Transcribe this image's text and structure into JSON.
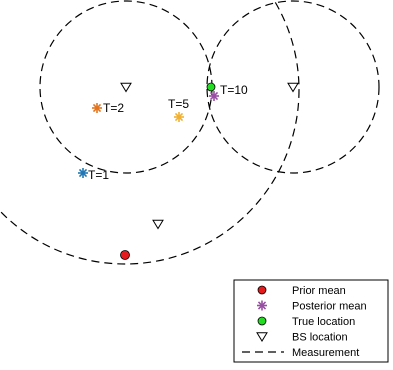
{
  "chart_data": {
    "type": "scatter",
    "title": "",
    "xlabel": "",
    "ylabel": "",
    "xlim": [
      0,
      393
    ],
    "ylim": [
      0,
      370
    ],
    "axes_visible": false,
    "grid": false,
    "legend_position": "bottom-right",
    "colors": {
      "prior": "#e41a1c",
      "posterior": "#984ea3",
      "true": "#22dd22",
      "bs": "#000000",
      "T1": "#1f77b4",
      "T2": "#e3731c",
      "T5": "#f0b030",
      "T10": "#984ea3"
    },
    "measurements": [
      {
        "center": [
          125,
          280
        ],
        "radius": 174
      },
      {
        "center": [
          126,
          283
        ],
        "radius": 86
      },
      {
        "center": [
          293,
          283
        ],
        "radius": 86
      }
    ],
    "bs_locations": [
      {
        "x": 126,
        "y": 283
      },
      {
        "x": 293,
        "y": 283
      },
      {
        "x": 158,
        "y": 146
      }
    ],
    "prior_mean": {
      "x": 125,
      "y": 115
    },
    "true_location": {
      "x": 211,
      "y": 283
    },
    "posterior_estimates": [
      {
        "label": "T=1",
        "x": 83,
        "y": 197,
        "color_key": "T1"
      },
      {
        "label": "T=2",
        "x": 97,
        "y": 262,
        "color_key": "T2"
      },
      {
        "label": "T=5",
        "x": 179,
        "y": 253,
        "color_key": "T5"
      },
      {
        "label": "T=10",
        "x": 214,
        "y": 274,
        "color_key": "T10"
      }
    ],
    "legend": [
      {
        "label": "Prior mean",
        "marker": "circle",
        "color_key": "prior"
      },
      {
        "label": "Posterior mean",
        "marker": "asterisk",
        "color_key": "posterior"
      },
      {
        "label": "True location",
        "marker": "circle",
        "color_key": "true"
      },
      {
        "label": "BS location",
        "marker": "triangle-down",
        "color_key": "bs"
      },
      {
        "label": "Measurement",
        "marker": "dashed-line",
        "color_key": "bs"
      }
    ]
  }
}
